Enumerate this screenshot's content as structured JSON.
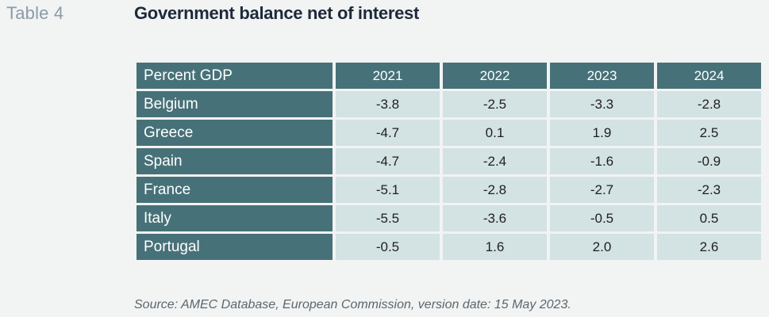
{
  "header": {
    "label": "Table 4",
    "title": "Government balance net of interest"
  },
  "table": {
    "corner": "Percent GDP",
    "columns": [
      "2021",
      "2022",
      "2023",
      "2024"
    ],
    "rows": [
      {
        "name": "Belgium",
        "values": [
          "-3.8",
          "-2.5",
          "-3.3",
          "-2.8"
        ]
      },
      {
        "name": "Greece",
        "values": [
          "-4.7",
          "0.1",
          "1.9",
          "2.5"
        ]
      },
      {
        "name": "Spain",
        "values": [
          "-4.7",
          "-2.4",
          "-1.6",
          "-0.9"
        ]
      },
      {
        "name": "France",
        "values": [
          "-5.1",
          "-2.8",
          "-2.7",
          "-2.3"
        ]
      },
      {
        "name": "Italy",
        "values": [
          "-5.5",
          "-3.6",
          "-0.5",
          "0.5"
        ]
      },
      {
        "name": "Portugal",
        "values": [
          "-0.5",
          "1.6",
          "2.0",
          "2.6"
        ]
      }
    ]
  },
  "source": "Source: AMEC Database, European Commission, version date: 15 May 2023.",
  "colors": {
    "header_cell": "#477178",
    "value_cell": "#d3e2e3",
    "title": "#1c2a3a",
    "label": "#8a9ba8"
  }
}
